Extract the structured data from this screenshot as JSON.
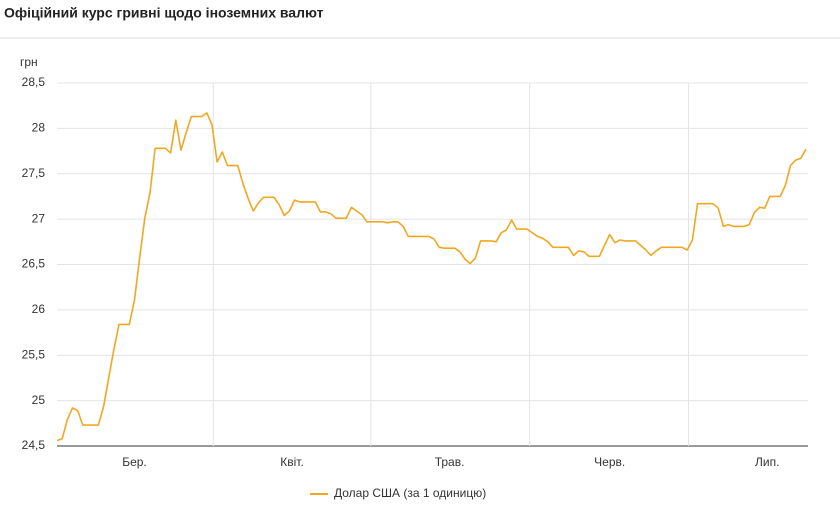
{
  "chart_data": {
    "type": "line",
    "title": "Офіційний курс гривні щодо іноземних валют",
    "y_label": "грн",
    "xlim": [
      0,
      145
    ],
    "xticks": [
      {
        "value": 15,
        "label": "Бер."
      },
      {
        "value": 45.5,
        "label": "Квіт."
      },
      {
        "value": 76,
        "label": "Трав."
      },
      {
        "value": 107,
        "label": "Черв."
      },
      {
        "value": 137.5,
        "label": "Лип."
      }
    ],
    "ylim": [
      24.5,
      28.5
    ],
    "yticks": [
      {
        "value": 24.5,
        "label": "24,5"
      },
      25,
      {
        "value": 25.5,
        "label": "25,5"
      },
      26,
      {
        "value": 26.5,
        "label": "26,5"
      },
      27,
      {
        "value": 27.5,
        "label": "27,5"
      },
      28,
      {
        "value": 28.5,
        "label": "28,5"
      }
    ],
    "grid": true,
    "legend": "bottom",
    "series": [
      {
        "name": "Долар США (за 1 одиницю)",
        "color": "#f0a824",
        "values": [
          24.56,
          24.58,
          24.79,
          24.92,
          24.89,
          24.73,
          24.73,
          24.73,
          24.73,
          24.93,
          25.25,
          25.56,
          25.84,
          25.84,
          25.84,
          26.11,
          26.57,
          27.01,
          27.29,
          27.78,
          27.78,
          27.78,
          27.73,
          28.09,
          27.76,
          27.95,
          28.13,
          28.13,
          28.13,
          28.17,
          28.04,
          27.63,
          27.74,
          27.59,
          27.59,
          27.59,
          27.39,
          27.23,
          27.09,
          27.18,
          27.24,
          27.24,
          27.24,
          27.16,
          27.04,
          27.09,
          27.21,
          27.19,
          27.19,
          27.19,
          27.19,
          27.08,
          27.08,
          27.06,
          27.01,
          27.01,
          27.01,
          27.13,
          27.09,
          27.05,
          26.97,
          26.97,
          26.97,
          26.97,
          26.96,
          26.97,
          26.97,
          26.92,
          26.81,
          26.81,
          26.81,
          26.81,
          26.81,
          26.78,
          26.69,
          26.68,
          26.68,
          26.68,
          26.64,
          26.56,
          26.51,
          26.57,
          26.76,
          26.76,
          26.76,
          26.75,
          26.85,
          26.88,
          26.99,
          26.89,
          26.89,
          26.89,
          26.85,
          26.81,
          26.79,
          26.75,
          26.69,
          26.69,
          26.69,
          26.69,
          26.6,
          26.65,
          26.64,
          26.59,
          26.59,
          26.59,
          26.71,
          26.83,
          26.74,
          26.77,
          26.76,
          26.76,
          26.76,
          26.71,
          26.66,
          26.6,
          26.65,
          26.69,
          26.69,
          26.69,
          26.69,
          26.69,
          26.66,
          26.77,
          27.17,
          27.17,
          27.17,
          27.17,
          27.12,
          26.92,
          26.94,
          26.92,
          26.92,
          26.92,
          26.94,
          27.07,
          27.13,
          27.12,
          27.25,
          27.25,
          27.25,
          27.37,
          27.59,
          27.65,
          27.67,
          27.77
        ]
      }
    ]
  }
}
